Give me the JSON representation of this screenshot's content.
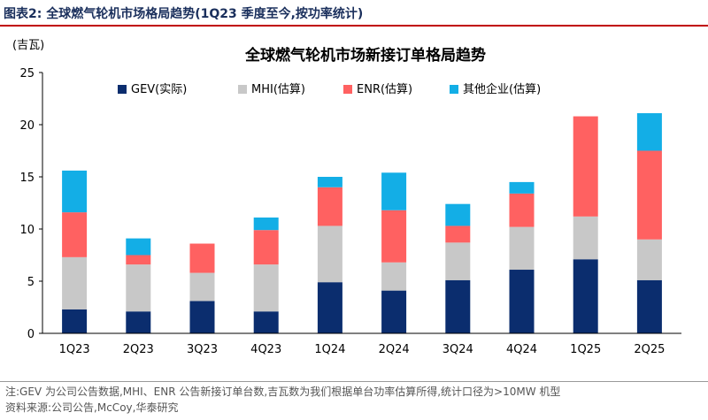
{
  "figure": {
    "header": "图表2:  全球燃气轮机市场格局趋势(1Q23 季度至今,按功率统计)",
    "unit": "(吉瓦)",
    "note": "注:GEV 为公司公告数据,MHI、ENR 公告新接订单台数,吉瓦数为我们根据单台功率估算所得,统计口径为>10MW 机型",
    "source": "资料来源:公司公告,McCoy,华泰研究",
    "accent_color": "#c00000"
  },
  "chart_data": {
    "type": "bar",
    "stacked": true,
    "title": "全球燃气轮机市场新接订单格局趋势",
    "xlabel": "",
    "ylabel": "(吉瓦)",
    "ylim": [
      0,
      25
    ],
    "yticks": [
      0,
      5,
      10,
      15,
      20,
      25
    ],
    "grid": false,
    "legend_position": "top",
    "categories": [
      "1Q23",
      "2Q23",
      "3Q23",
      "4Q23",
      "1Q24",
      "2Q24",
      "3Q24",
      "4Q24",
      "1Q25",
      "2Q25"
    ],
    "series": [
      {
        "name": "GEV(实际)",
        "color": "#0b2d6e",
        "values": [
          2.3,
          2.1,
          3.1,
          2.1,
          4.9,
          4.1,
          5.1,
          6.1,
          7.1,
          5.1
        ]
      },
      {
        "name": "MHI(估算)",
        "color": "#c8c8c8",
        "values": [
          5.0,
          4.5,
          2.7,
          4.5,
          5.4,
          2.7,
          3.6,
          4.1,
          4.1,
          3.9
        ]
      },
      {
        "name": "ENR(估算)",
        "color": "#ff6161",
        "values": [
          4.3,
          0.9,
          2.8,
          3.3,
          3.7,
          5.0,
          1.6,
          3.2,
          9.6,
          8.5
        ]
      },
      {
        "name": "其他企业(估算)",
        "color": "#13aee6",
        "values": [
          4.0,
          1.6,
          0.0,
          1.2,
          1.0,
          3.6,
          2.1,
          1.1,
          0.0,
          3.6
        ]
      }
    ]
  }
}
